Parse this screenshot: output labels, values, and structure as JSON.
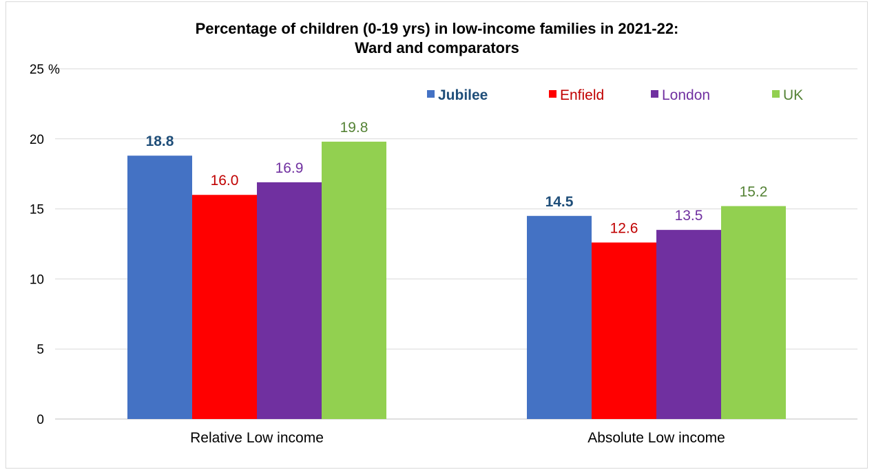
{
  "chart_data": {
    "type": "bar",
    "title_line1": "Percentage of children (0-19 yrs) in low-income families in 2021-22:",
    "title_line2": "Ward and comparators",
    "ylabel": "%",
    "ylim": [
      0,
      25
    ],
    "yticks": [
      0,
      5,
      10,
      15,
      20,
      25
    ],
    "grid": true,
    "legend_position": "top-right",
    "categories": [
      "Relative Low income",
      "Absolute Low income"
    ],
    "series": [
      {
        "name": "Jubilee",
        "color": "#4472c4",
        "label_color": "#1f4e79",
        "label_bold": true,
        "values": [
          18.8,
          14.5
        ],
        "labels": [
          "18.8",
          "14.5"
        ]
      },
      {
        "name": "Enfield",
        "color": "#ff0000",
        "label_color": "#c00000",
        "label_bold": false,
        "values": [
          16.0,
          12.6
        ],
        "labels": [
          "16.0",
          "12.6"
        ]
      },
      {
        "name": "London",
        "color": "#7030a0",
        "label_color": "#7030a0",
        "label_bold": false,
        "values": [
          16.9,
          13.5
        ],
        "labels": [
          "16.9",
          "13.5"
        ]
      },
      {
        "name": "UK",
        "color": "#92d050",
        "label_color": "#548235",
        "label_bold": false,
        "values": [
          19.8,
          15.2
        ],
        "labels": [
          "19.8",
          "15.2"
        ]
      }
    ]
  }
}
